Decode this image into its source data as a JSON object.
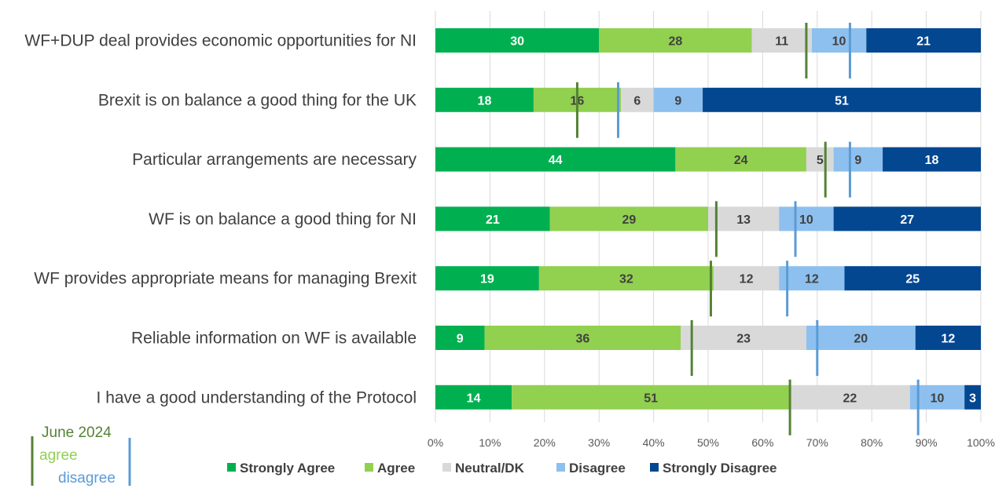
{
  "chart_data": {
    "type": "bar",
    "orientation": "horizontal",
    "stacked": true,
    "title": "",
    "xlabel": "",
    "ylabel": "",
    "xlim": [
      0,
      100
    ],
    "x_ticks": [
      "0%",
      "10%",
      "20%",
      "30%",
      "40%",
      "50%",
      "60%",
      "70%",
      "80%",
      "90%",
      "100%"
    ],
    "grid": "vertical",
    "categories": [
      "WF+DUP deal provides economic opportunities for NI",
      "Brexit is on balance a good thing for the UK",
      "Particular arrangements are necessary",
      "WF is on balance a good thing for NI",
      "WF provides appropriate means for managing Brexit",
      "Reliable information on WF is available",
      "I have a good understanding of the Protocol"
    ],
    "series": [
      {
        "name": "Strongly Agree",
        "color": "#00b050",
        "label_color": "#ffffff",
        "values": [
          30,
          18,
          44,
          21,
          19,
          9,
          14
        ]
      },
      {
        "name": "Agree",
        "color": "#92d050",
        "label_color": "#404040",
        "values": [
          28,
          16,
          24,
          29,
          32,
          36,
          51
        ]
      },
      {
        "name": "Neutral/DK",
        "color": "#d9d9d9",
        "label_color": "#404040",
        "values": [
          11,
          6,
          5,
          13,
          12,
          23,
          22
        ]
      },
      {
        "name": "Disagree",
        "color": "#8dc0ee",
        "label_color": "#404040",
        "values": [
          10,
          9,
          9,
          10,
          12,
          20,
          10
        ]
      },
      {
        "name": "Strongly Disagree",
        "color": "#034791",
        "label_color": "#ffffff",
        "values": [
          21,
          51,
          18,
          27,
          25,
          12,
          3
        ]
      }
    ],
    "markers": {
      "title": "June 2024",
      "agree": {
        "label": "agree",
        "color": "#548235",
        "values": [
          68,
          26,
          71.5,
          51.5,
          50.5,
          47,
          65
        ]
      },
      "disagree": {
        "label": "disagree",
        "color": "#5b9bd5",
        "values": [
          76,
          33.5,
          76,
          66,
          64.5,
          70,
          88.5
        ]
      }
    },
    "legend_position": "bottom"
  }
}
